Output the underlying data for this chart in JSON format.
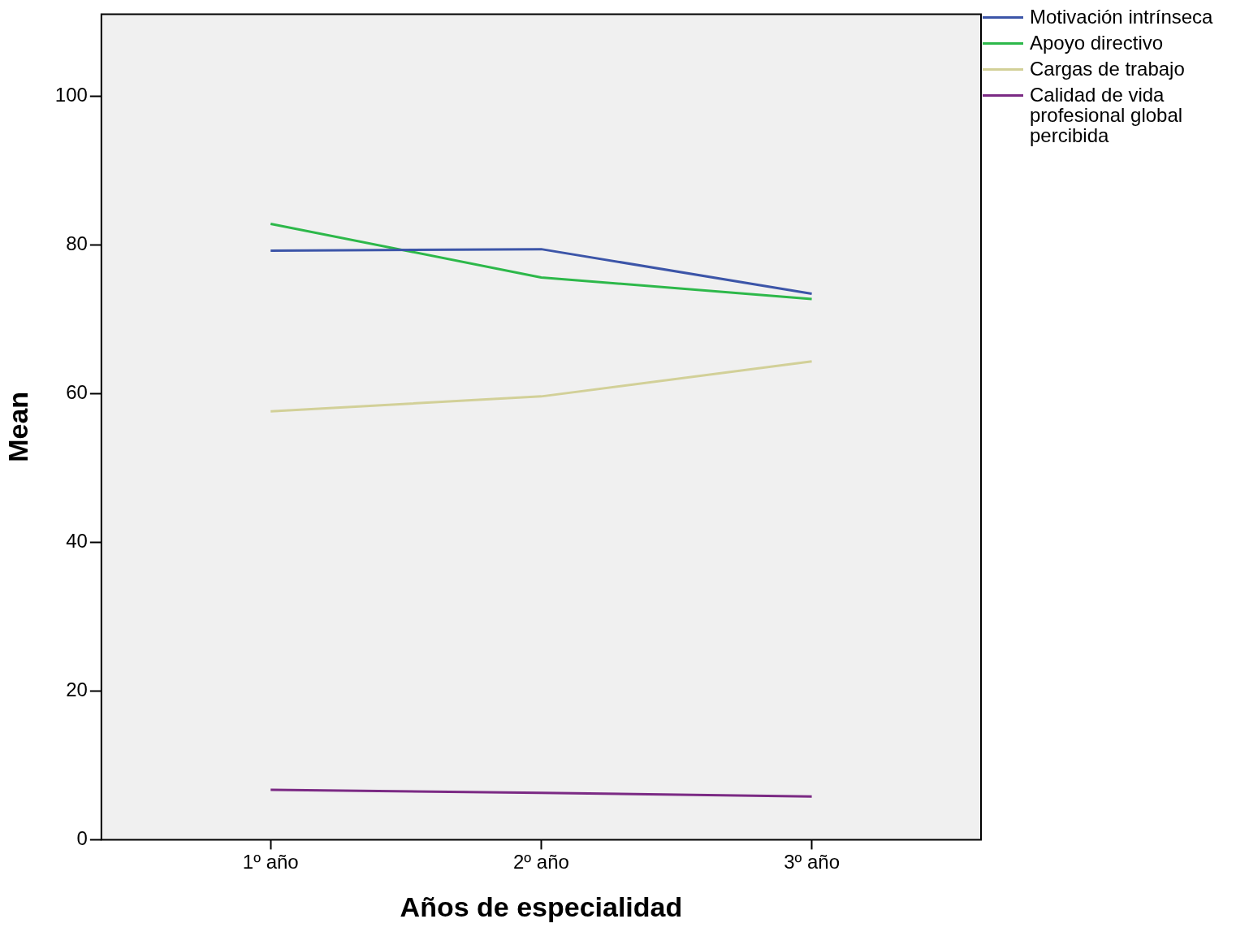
{
  "chart_data": {
    "type": "line",
    "xlabel": "Años de especialidad",
    "ylabel": "Mean",
    "categories": [
      "1º año",
      "2º año",
      "3º año"
    ],
    "ylim": [
      0,
      111
    ],
    "yticks": [
      0,
      20,
      40,
      60,
      80,
      100
    ],
    "grid": false,
    "legend": "top right",
    "marker": "none",
    "line_style": "solid",
    "series": [
      {
        "name": "Motivación intrínseca",
        "color": "#3c55a8",
        "values": [
          79.2,
          79.4,
          73.4
        ]
      },
      {
        "name": "Apoyo directivo",
        "color": "#2db84a",
        "values": [
          82.8,
          75.6,
          72.7
        ]
      },
      {
        "name": "Cargas de trabajo",
        "color": "#d2d098",
        "values": [
          57.6,
          59.6,
          64.3
        ]
      },
      {
        "name": "Calidad de vida profesional global percibida",
        "color": "#7b2a84",
        "values": [
          6.7,
          6.3,
          5.8
        ]
      }
    ]
  }
}
